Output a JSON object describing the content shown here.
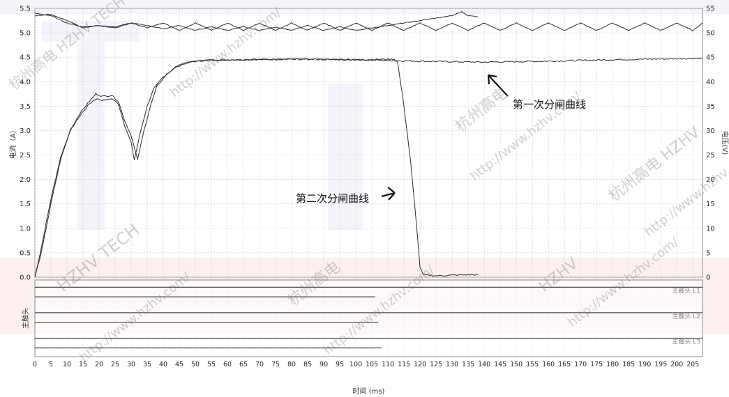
{
  "chart_data": {
    "type": "line",
    "xlabel": "时间 (ms)",
    "ylabel_left": "电流（A）",
    "ylabel_right": "电压(V)",
    "xlim": [
      0,
      208
    ],
    "ylim_left": [
      0,
      5.5
    ],
    "ylim_right": [
      0,
      55
    ],
    "grid": true,
    "x_ticks": [
      "0",
      "5",
      "10",
      "15",
      "20",
      "25",
      "30",
      "35",
      "40",
      "45",
      "50",
      "55",
      "60",
      "65",
      "70",
      "75",
      "80",
      "85",
      "90",
      "95",
      "100",
      "105",
      "110",
      "115",
      "120",
      "125",
      "130",
      "135",
      "140",
      "145",
      "150",
      "155",
      "160",
      "165",
      "170",
      "175",
      "180",
      "185",
      "190",
      "195",
      "200",
      "205"
    ],
    "y_left_ticks": [
      "0.0",
      "0.5",
      "1.0",
      "1.5",
      "2.0",
      "2.5",
      "3.0",
      "3.5",
      "4.0",
      "4.5",
      "5.0",
      "5.5"
    ],
    "y_right_ticks": [
      "0",
      "5",
      "10",
      "15",
      "20",
      "25",
      "30",
      "35",
      "40",
      "45",
      "50",
      "55"
    ],
    "series": [
      {
        "name": "第一次分闸曲线",
        "axis": "left",
        "points": [
          [
            0,
            0
          ],
          [
            2,
            0.6
          ],
          [
            5,
            1.6
          ],
          [
            8,
            2.45
          ],
          [
            11,
            3.0
          ],
          [
            14,
            3.3
          ],
          [
            17,
            3.55
          ],
          [
            19,
            3.65
          ],
          [
            21,
            3.62
          ],
          [
            24,
            3.65
          ],
          [
            26,
            3.55
          ],
          [
            28,
            3.1
          ],
          [
            30,
            2.75
          ],
          [
            31,
            2.4
          ],
          [
            33,
            3.0
          ],
          [
            35,
            3.5
          ],
          [
            37,
            3.85
          ],
          [
            40,
            4.1
          ],
          [
            44,
            4.3
          ],
          [
            48,
            4.4
          ],
          [
            55,
            4.45
          ],
          [
            65,
            4.45
          ],
          [
            80,
            4.46
          ],
          [
            100,
            4.45
          ],
          [
            120,
            4.42
          ],
          [
            140,
            4.4
          ],
          [
            160,
            4.42
          ],
          [
            180,
            4.45
          ],
          [
            200,
            4.47
          ],
          [
            208,
            4.48
          ]
        ]
      },
      {
        "name": "第二次分闸曲线",
        "axis": "left",
        "points": [
          [
            0,
            0
          ],
          [
            2,
            0.5
          ],
          [
            5,
            1.5
          ],
          [
            8,
            2.4
          ],
          [
            11,
            3.0
          ],
          [
            14,
            3.35
          ],
          [
            17,
            3.6
          ],
          [
            19,
            3.75
          ],
          [
            21,
            3.7
          ],
          [
            24,
            3.72
          ],
          [
            26,
            3.6
          ],
          [
            28,
            3.2
          ],
          [
            30,
            2.9
          ],
          [
            32,
            2.4
          ],
          [
            34,
            3.0
          ],
          [
            36,
            3.5
          ],
          [
            38,
            3.9
          ],
          [
            41,
            4.15
          ],
          [
            45,
            4.35
          ],
          [
            50,
            4.42
          ],
          [
            60,
            4.45
          ],
          [
            80,
            4.46
          ],
          [
            100,
            4.45
          ],
          [
            112,
            4.46
          ],
          [
            113,
            4.4
          ],
          [
            115,
            3.5
          ],
          [
            117,
            2.4
          ],
          [
            119,
            1.0
          ],
          [
            120,
            0.2
          ],
          [
            121,
            0.05
          ],
          [
            125,
            0.03
          ],
          [
            130,
            0.04
          ],
          [
            135,
            0.05
          ],
          [
            138,
            0.05
          ]
        ]
      },
      {
        "name": "",
        "axis": "right",
        "points": [
          [
            0,
            54
          ],
          [
            5,
            53.5
          ],
          [
            10,
            52
          ],
          [
            15,
            51.2
          ],
          [
            20,
            51.5
          ],
          [
            25,
            51.2
          ],
          [
            30,
            52
          ],
          [
            35,
            51.5
          ],
          [
            40,
            50.8
          ],
          [
            45,
            51.5
          ],
          [
            50,
            50.5
          ],
          [
            55,
            51.2
          ],
          [
            60,
            50.5
          ],
          [
            65,
            51.2
          ],
          [
            70,
            50.5
          ],
          [
            75,
            51.2
          ],
          [
            80,
            50.5
          ],
          [
            85,
            51.5
          ],
          [
            90,
            50.5
          ],
          [
            95,
            51.2
          ],
          [
            100,
            50.5
          ],
          [
            105,
            51.0
          ],
          [
            110,
            51.5
          ],
          [
            115,
            52
          ],
          [
            120,
            52.5
          ],
          [
            125,
            53
          ],
          [
            130,
            53.5
          ],
          [
            133,
            54.3
          ],
          [
            135,
            53.5
          ],
          [
            138,
            53.3
          ]
        ]
      },
      {
        "name": "",
        "axis": "right",
        "points": [
          [
            0,
            53.5
          ],
          [
            5,
            53.8
          ],
          [
            10,
            52.5
          ],
          [
            15,
            51
          ],
          [
            20,
            51.5
          ],
          [
            25,
            51
          ],
          [
            30,
            52
          ],
          [
            35,
            51
          ],
          [
            40,
            52
          ],
          [
            45,
            50.5
          ],
          [
            50,
            52
          ],
          [
            55,
            50.5
          ],
          [
            60,
            52
          ],
          [
            65,
            50.5
          ],
          [
            70,
            52
          ],
          [
            75,
            50.5
          ],
          [
            80,
            52
          ],
          [
            85,
            50.5
          ],
          [
            90,
            52
          ],
          [
            95,
            50.5
          ],
          [
            100,
            52
          ],
          [
            105,
            50.5
          ],
          [
            110,
            52
          ],
          [
            115,
            50.5
          ],
          [
            120,
            52
          ],
          [
            125,
            50.5
          ],
          [
            130,
            52
          ],
          [
            135,
            50.5
          ],
          [
            140,
            52
          ],
          [
            145,
            50.5
          ],
          [
            150,
            52
          ],
          [
            155,
            50.5
          ],
          [
            160,
            52
          ],
          [
            165,
            50.5
          ],
          [
            170,
            52
          ],
          [
            175,
            50.5
          ],
          [
            180,
            52
          ],
          [
            185,
            50.5
          ],
          [
            190,
            52
          ],
          [
            195,
            50.5
          ],
          [
            200,
            52
          ],
          [
            205,
            50.5
          ],
          [
            208,
            52
          ]
        ]
      }
    ],
    "annotations": [
      "第一次分闸曲线",
      "第二次分闸曲线"
    ],
    "timing_panel": {
      "title": "主触头",
      "rows": [
        {
          "label": "主触头 L1",
          "end1": 106,
          "end2": 208
        },
        {
          "label": "主触头 L2",
          "end1": 107,
          "end2": 208
        },
        {
          "label": "主触头 L3",
          "end1": 108,
          "end2": 208
        }
      ]
    }
  },
  "watermarks": [
    "杭州高电 HZHV TECH",
    "http://www.hzhv.com/",
    "杭州高电",
    "http://www.hzhv.com/",
    "HZHV TECH",
    "http://www.hzhv.com/",
    "杭州高电",
    "http://www.hzhv.com/",
    "HZHV",
    "http://www.hzhv.com/",
    "杭州高电 HZHV",
    "http://www.hzhv.com/"
  ],
  "colors": {
    "line": "#2b2b2b",
    "grid": "#cfcfcf",
    "brand_blue": "#2c3fa8",
    "brand_red": "#d9342a"
  }
}
